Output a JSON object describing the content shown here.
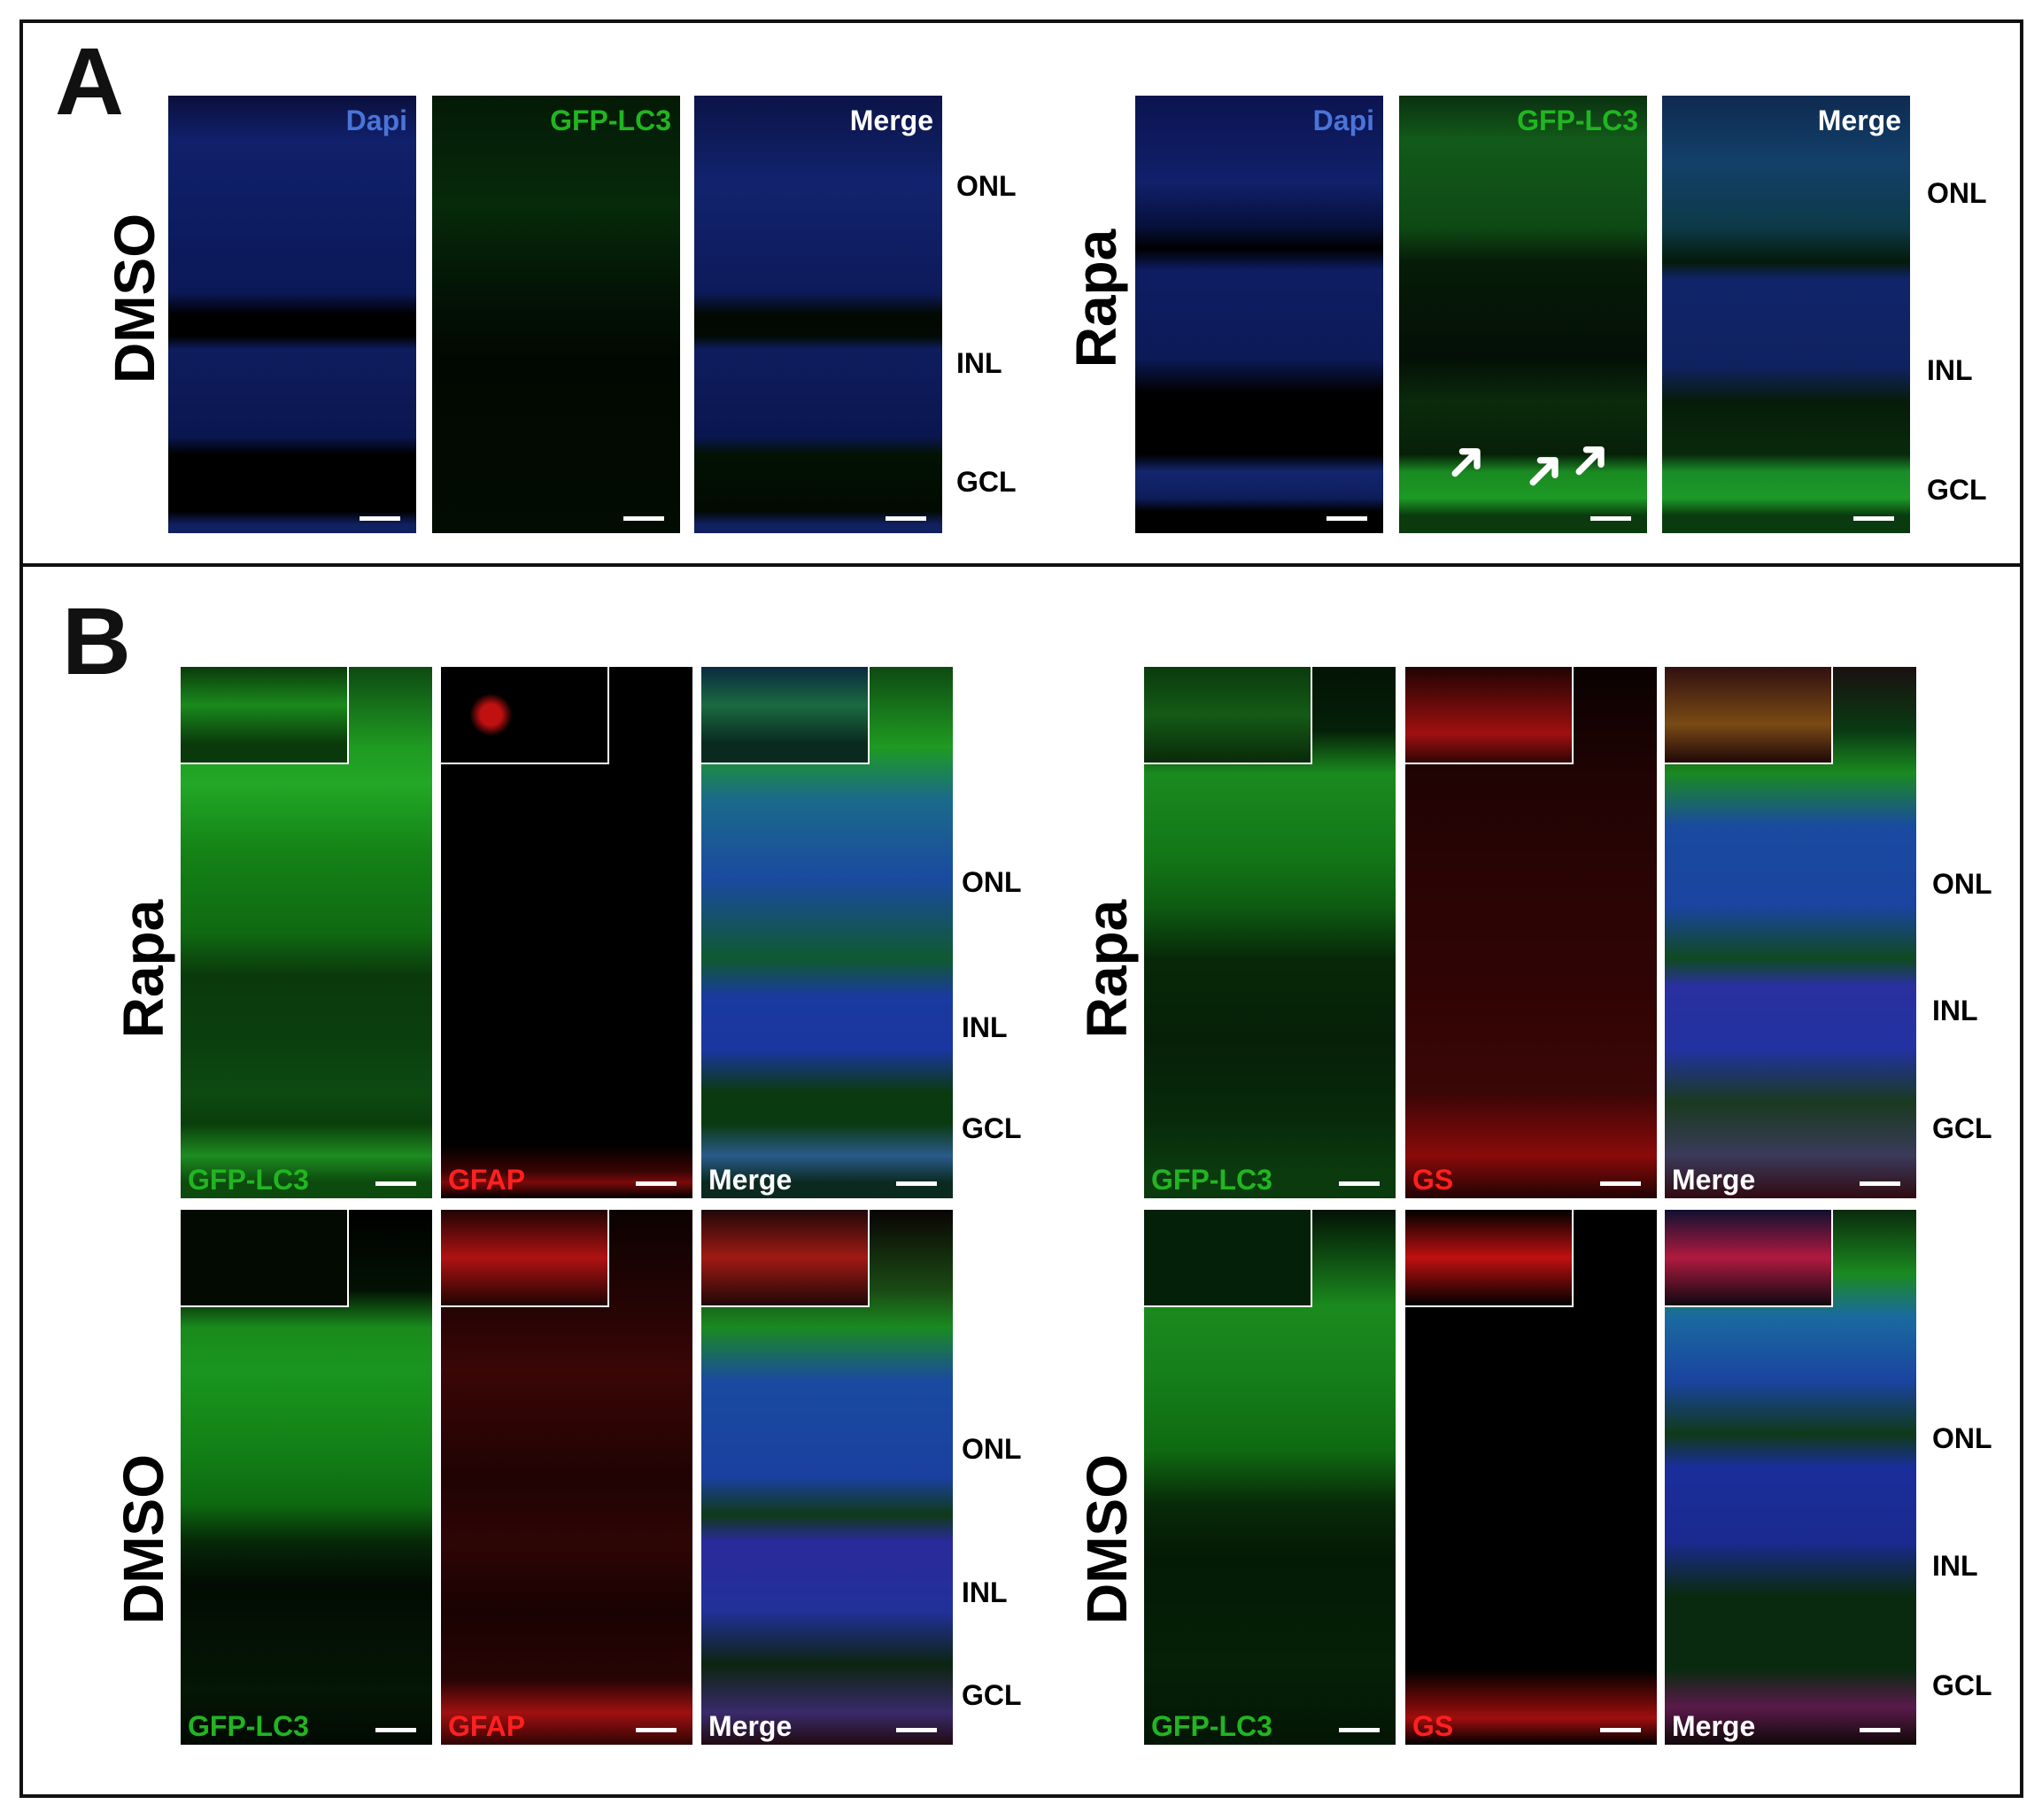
{
  "panelA": {
    "label": "A",
    "left": {
      "condition": "DMSO",
      "channels": [
        "Dapi",
        "GFP-LC3",
        "Merge"
      ],
      "layers": [
        "ONL",
        "INL",
        "GCL"
      ]
    },
    "right": {
      "condition": "Rapa",
      "channels": [
        "Dapi",
        "GFP-LC3",
        "Merge"
      ],
      "layers": [
        "ONL",
        "INL",
        "GCL"
      ]
    }
  },
  "panelB": {
    "label": "B",
    "left": {
      "rows": [
        {
          "condition": "Rapa",
          "channels": [
            "GFP-LC3",
            "GFAP",
            "Merge"
          ]
        },
        {
          "condition": "DMSO",
          "channels": [
            "GFP-LC3",
            "GFAP",
            "Merge"
          ]
        }
      ],
      "layers_top": [
        "ONL",
        "INL",
        "GCL"
      ],
      "layers_bottom": [
        "ONL",
        "INL",
        "GCL"
      ]
    },
    "right": {
      "rows": [
        {
          "condition": "Rapa",
          "channels": [
            "GFP-LC3",
            "GS",
            "Merge"
          ]
        },
        {
          "condition": "DMSO",
          "channels": [
            "GFP-LC3",
            "GS",
            "Merge"
          ]
        }
      ],
      "layers_top": [
        "ONL",
        "INL",
        "GCL"
      ],
      "layers_bottom": [
        "ONL",
        "INL",
        "GCL"
      ]
    }
  },
  "colors": {
    "dapi": "#4a74d8",
    "gfp": "#22b522",
    "red": "#ff2020",
    "merge_text": "#ffffff"
  }
}
